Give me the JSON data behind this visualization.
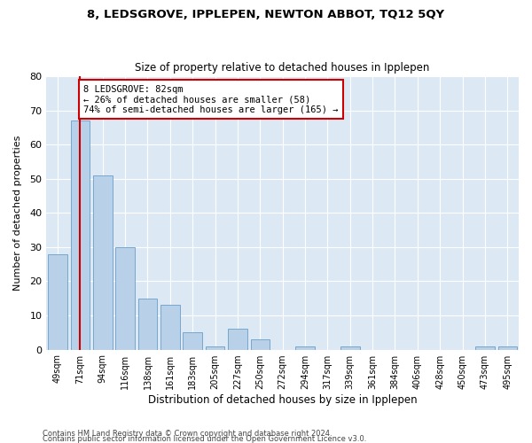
{
  "title1": "8, LEDSGROVE, IPPLEPEN, NEWTON ABBOT, TQ12 5QY",
  "title2": "Size of property relative to detached houses in Ipplepen",
  "xlabel": "Distribution of detached houses by size in Ipplepen",
  "ylabel": "Number of detached properties",
  "categories": [
    "49sqm",
    "71sqm",
    "94sqm",
    "116sqm",
    "138sqm",
    "161sqm",
    "183sqm",
    "205sqm",
    "227sqm",
    "250sqm",
    "272sqm",
    "294sqm",
    "317sqm",
    "339sqm",
    "361sqm",
    "384sqm",
    "406sqm",
    "428sqm",
    "450sqm",
    "473sqm",
    "495sqm"
  ],
  "values": [
    28,
    67,
    51,
    30,
    15,
    13,
    5,
    1,
    6,
    3,
    0,
    1,
    0,
    1,
    0,
    0,
    0,
    0,
    0,
    1,
    1
  ],
  "bar_color": "#b8d0e8",
  "bar_edge_color": "#6a9fc8",
  "vline_x_index": 1,
  "vline_color": "#cc0000",
  "annotation_text": "8 LEDSGROVE: 82sqm\n← 26% of detached houses are smaller (58)\n74% of semi-detached houses are larger (165) →",
  "annotation_box_facecolor": "#ffffff",
  "annotation_box_edgecolor": "#cc0000",
  "ylim": [
    0,
    80
  ],
  "yticks": [
    0,
    10,
    20,
    30,
    40,
    50,
    60,
    70,
    80
  ],
  "footer1": "Contains HM Land Registry data © Crown copyright and database right 2024.",
  "footer2": "Contains public sector information licensed under the Open Government Licence v3.0.",
  "plot_bg_color": "#dce9f5",
  "fig_bg_color": "#ffffff"
}
